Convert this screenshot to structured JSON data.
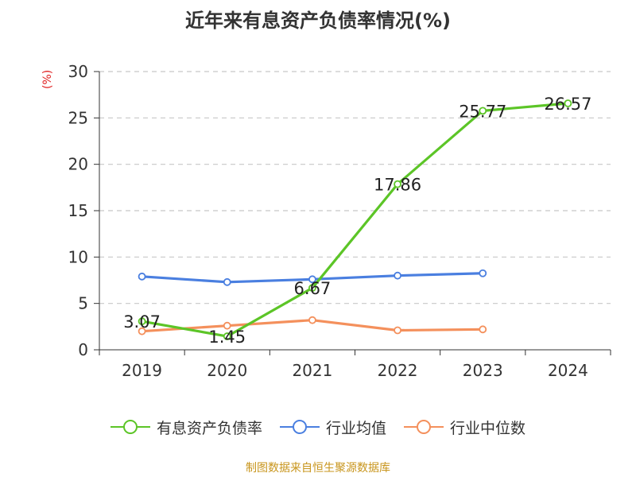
{
  "chart_data": {
    "type": "line",
    "title": "近年来有息资产负债率情况(%)",
    "ylabel": "(%)",
    "categories": [
      "2019",
      "2020",
      "2021",
      "2022",
      "2023",
      "2024"
    ],
    "ylim": [
      0,
      30
    ],
    "yticks": [
      0,
      5,
      10,
      15,
      20,
      25,
      30
    ],
    "grid": true,
    "legend_position": "bottom",
    "series": [
      {
        "name": "有息资产负债率",
        "color": "#5cc527",
        "values": [
          3.07,
          1.45,
          6.67,
          17.86,
          25.77,
          26.57
        ],
        "labels": [
          "3.07",
          "1.45",
          "6.67",
          "17.86",
          "25.77",
          "26.57"
        ]
      },
      {
        "name": "行业均值",
        "color": "#4a7fe0",
        "values": [
          7.9,
          7.3,
          7.6,
          8.0,
          8.25,
          null
        ]
      },
      {
        "name": "行业中位数",
        "color": "#f4905c",
        "values": [
          2.0,
          2.6,
          3.2,
          2.1,
          2.2,
          null
        ]
      }
    ]
  },
  "source": "制图数据来自恒生聚源数据库"
}
